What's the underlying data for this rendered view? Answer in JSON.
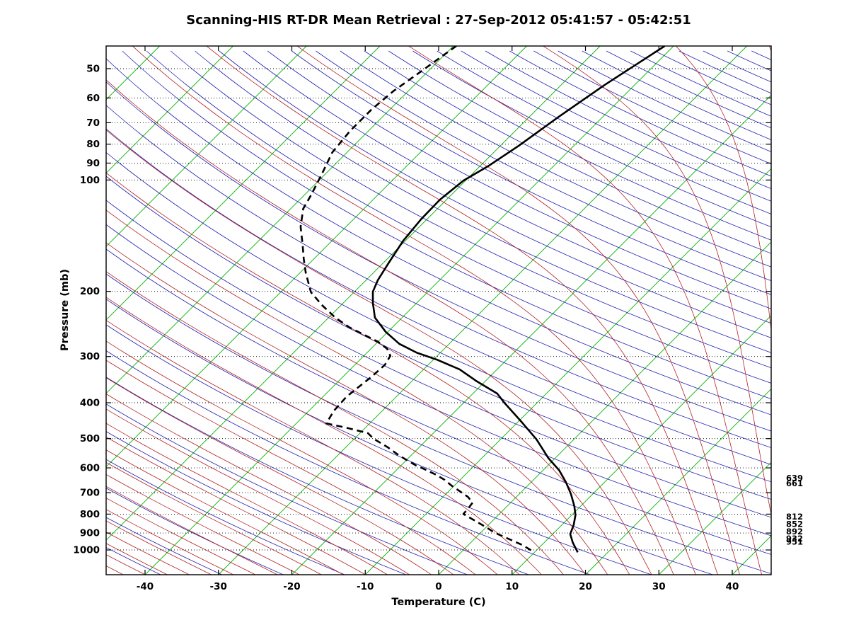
{
  "title": "Scanning-HIS RT-DR Mean Retrieval : 27-Sep-2012 05:41:57 - 05:42:51",
  "axes": {
    "x_label": "Temperature (C)",
    "y_label": "Pressure (mb)",
    "x_ticks": [
      -40,
      -30,
      -20,
      -10,
      0,
      10,
      20,
      30,
      40
    ],
    "y_ticks": [
      50,
      60,
      70,
      80,
      90,
      100,
      200,
      300,
      400,
      500,
      600,
      700,
      800,
      900,
      1000
    ]
  },
  "chart_data": {
    "type": "line",
    "variant": "skew-t-log-p-sounding",
    "title": "Scanning-HIS RT-DR Mean Retrieval : 27-Sep-2012 05:41:57 - 05:42:51",
    "xlabel": "Temperature (C)",
    "ylabel": "Pressure (mb)",
    "x_axis_range_c": [
      -45.3,
      45.3
    ],
    "pressure_range_mb": [
      43.4,
      1166
    ],
    "isotherm_skew": "45deg",
    "grid": "dotted horizontal lines at labeled pressure levels",
    "legend_position": "none",
    "series": [
      {
        "name": "temperature",
        "line": "solid",
        "color": "#000000",
        "units": [
          "mb",
          "C"
        ],
        "points": [
          [
            43.4,
            -41.2
          ],
          [
            55.4,
            -44.1
          ],
          [
            67.4,
            -46.0
          ],
          [
            80.8,
            -47.5
          ],
          [
            91.8,
            -48.9
          ],
          [
            100.4,
            -50.3
          ],
          [
            113,
            -50.9
          ],
          [
            127.7,
            -50.8
          ],
          [
            146.2,
            -50.3
          ],
          [
            166.9,
            -49.3
          ],
          [
            186.4,
            -48.4
          ],
          [
            200.4,
            -47.5
          ],
          [
            215.5,
            -45.9
          ],
          [
            235.4,
            -43.7
          ],
          [
            257.2,
            -40.3
          ],
          [
            277.2,
            -36.8
          ],
          [
            293,
            -33.2
          ],
          [
            306,
            -29.5
          ],
          [
            325,
            -25.1
          ],
          [
            349,
            -21.3
          ],
          [
            377.7,
            -16.7
          ],
          [
            400.6,
            -14.4
          ],
          [
            453,
            -9.3
          ],
          [
            502.5,
            -5.1
          ],
          [
            565,
            -0.9
          ],
          [
            609,
            2.2
          ],
          [
            657,
            4.8
          ],
          [
            705,
            7.0
          ],
          [
            760,
            9.1
          ],
          [
            804,
            10.5
          ],
          [
            855,
            11.6
          ],
          [
            906,
            12.4
          ],
          [
            955,
            13.9
          ],
          [
            1015,
            15.9
          ]
        ]
      },
      {
        "name": "dewpoint",
        "line": "dashed",
        "color": "#000000",
        "units": [
          "mb",
          "C"
        ],
        "points": [
          [
            43.4,
            -69.6
          ],
          [
            51.3,
            -71.0
          ],
          [
            57.4,
            -72.0
          ],
          [
            64.6,
            -72.5
          ],
          [
            73.7,
            -72.5
          ],
          [
            84.2,
            -72.0
          ],
          [
            96.1,
            -70.5
          ],
          [
            109.5,
            -69.1
          ],
          [
            119.5,
            -68.3
          ],
          [
            133.7,
            -66.2
          ],
          [
            149.4,
            -63.5
          ],
          [
            163.3,
            -61.4
          ],
          [
            178.3,
            -59.2
          ],
          [
            200.8,
            -55.9
          ],
          [
            217.4,
            -52.7
          ],
          [
            235.4,
            -49.1
          ],
          [
            250.4,
            -45.8
          ],
          [
            261.8,
            -42.9
          ],
          [
            273.6,
            -40.0
          ],
          [
            285.8,
            -37.8
          ],
          [
            298.6,
            -36.4
          ],
          [
            316,
            -35.9
          ],
          [
            340.3,
            -36.1
          ],
          [
            365.2,
            -36.5
          ],
          [
            385.1,
            -36.8
          ],
          [
            400.6,
            -36.7
          ],
          [
            420.5,
            -36.6
          ],
          [
            454.9,
            -35.9
          ],
          [
            468,
            -32.4
          ],
          [
            483.4,
            -28.9
          ],
          [
            500.3,
            -27.4
          ],
          [
            527.6,
            -24.3
          ],
          [
            551.3,
            -22.0
          ],
          [
            571.1,
            -20.0
          ],
          [
            591.6,
            -17.9
          ],
          [
            602.2,
            -16.6
          ],
          [
            623.9,
            -14.2
          ],
          [
            646.4,
            -12.1
          ],
          [
            669.7,
            -10.4
          ],
          [
            693.8,
            -8.5
          ],
          [
            718.8,
            -6.6
          ],
          [
            744.6,
            -5.2
          ],
          [
            771.5,
            -5.0
          ],
          [
            799.4,
            -4.9
          ],
          [
            835,
            -2.3
          ],
          [
            869.6,
            0.1
          ],
          [
            897.8,
            1.9
          ],
          [
            938.1,
            5.0
          ],
          [
            971.7,
            7.5
          ],
          [
            1015,
            10.0
          ]
        ]
      }
    ],
    "reference_lines": {
      "isotherms": {
        "color": "#00b300",
        "from_c": -120,
        "to_c": 40,
        "step_c": 10
      },
      "dry_adiabats": {
        "color": "#2222b2",
        "theta_from_c": -48,
        "theta_to_c": 328,
        "step_c": 8
      },
      "moist_adiabats": {
        "color": "#b22222",
        "surface_temp_from_c": -46,
        "surface_temp_to_c": 92,
        "step_c": 3
      },
      "pressure_lines_mb": [
        50,
        60,
        70,
        80,
        90,
        100,
        200,
        300,
        400,
        500,
        600,
        700,
        800,
        900,
        1000
      ]
    },
    "annotations_right_mb": [
      639,
      661,
      812,
      852,
      892,
      932,
      951
    ]
  },
  "annotation_labels": [
    "639",
    "661",
    "812",
    "852",
    "892",
    "932",
    "951"
  ]
}
